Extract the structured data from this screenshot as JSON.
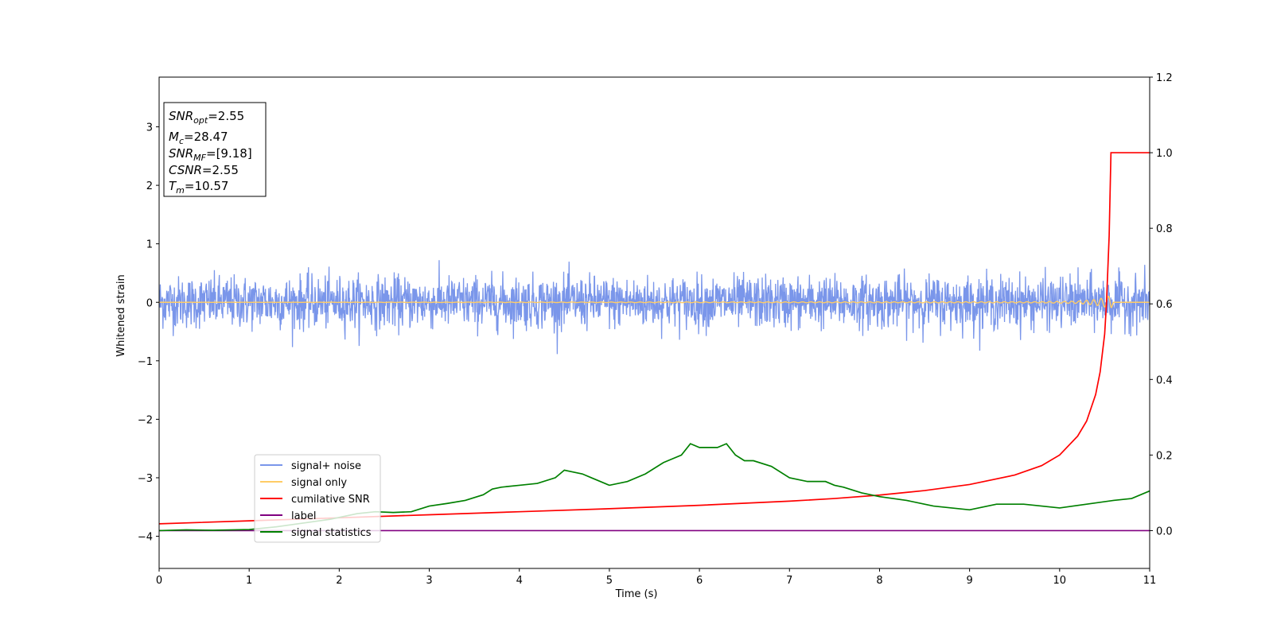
{
  "chart_data": {
    "type": "line",
    "xlabel": "Time (s)",
    "ylabel": "Whitened strain",
    "xlim": [
      0,
      11
    ],
    "ylim": [
      -4.55,
      3.85
    ],
    "y2lim": [
      -0.1,
      1.2
    ],
    "xticks": [
      "0",
      "1",
      "2",
      "3",
      "4",
      "5",
      "6",
      "7",
      "8",
      "9",
      "10",
      "11"
    ],
    "yticks": [
      "3",
      "2",
      "1",
      "0",
      "−1",
      "−2",
      "−3",
      "−4"
    ],
    "y2ticks": [
      "1.2",
      "1.0",
      "0.8",
      "0.6",
      "0.4",
      "0.2",
      "0.0"
    ],
    "annotation": {
      "snr_opt": {
        "base": "SNR",
        "sub": "opt",
        "value": "=2.55"
      },
      "mc": {
        "base": "M",
        "sub": "c",
        "value": "=28.47"
      },
      "snr_mf": {
        "base": "SNR",
        "sub": "MF",
        "value": "=[9.18]"
      },
      "csnr": {
        "base": "CSNR",
        "sub": "",
        "value": "=2.55"
      },
      "tm": {
        "base": "T",
        "sub": "m",
        "value": "=10.57"
      }
    },
    "legend": {
      "placement": "lower-left",
      "entries": [
        {
          "label": "signal+ noise",
          "color": "#7a96ea"
        },
        {
          "label": "signal only",
          "color": "#ffcc66"
        },
        {
          "label": "cumilative SNR",
          "color": "#ff0000"
        },
        {
          "label": "label",
          "color": "#800080"
        },
        {
          "label": "signal statistics",
          "color": "#008000"
        }
      ]
    },
    "series": [
      {
        "name": "signal+ noise",
        "axis": "left",
        "color": "#7a96ea",
        "kind": "noise",
        "noise_sigma": 0.22,
        "noise_peak": 1.03
      },
      {
        "name": "signal only",
        "axis": "left",
        "color": "#ffcc66",
        "kind": "chirp",
        "x": [
          0,
          9.8,
          10.2,
          10.4,
          10.5,
          10.57,
          10.6,
          11
        ],
        "amplitude": [
          0,
          0.01,
          0.02,
          0.05,
          0.08,
          0.12,
          0,
          0
        ]
      },
      {
        "name": "cumilative SNR",
        "axis": "right",
        "color": "#ff0000",
        "x": [
          0,
          1,
          2,
          3,
          4,
          5,
          6,
          7,
          7.5,
          8,
          8.5,
          9,
          9.5,
          9.8,
          10,
          10.2,
          10.3,
          10.4,
          10.45,
          10.5,
          10.52,
          10.55,
          10.57,
          10.6,
          11
        ],
        "y": [
          0.018,
          0.026,
          0.034,
          0.042,
          0.05,
          0.058,
          0.067,
          0.078,
          0.085,
          0.094,
          0.106,
          0.122,
          0.147,
          0.172,
          0.2,
          0.25,
          0.29,
          0.36,
          0.42,
          0.52,
          0.6,
          0.78,
          1.0,
          1.0,
          1.0
        ]
      },
      {
        "name": "label",
        "axis": "right",
        "color": "#800080",
        "x": [
          0,
          11
        ],
        "y": [
          0,
          0
        ]
      },
      {
        "name": "signal statistics",
        "axis": "right",
        "color": "#008000",
        "x": [
          0,
          0.3,
          0.6,
          1,
          1.3,
          1.6,
          1.9,
          2.2,
          2.4,
          2.6,
          2.8,
          3,
          3.2,
          3.4,
          3.6,
          3.7,
          3.8,
          4,
          4.2,
          4.4,
          4.5,
          4.6,
          4.7,
          4.8,
          5,
          5.2,
          5.4,
          5.6,
          5.7,
          5.8,
          5.9,
          6,
          6.2,
          6.3,
          6.4,
          6.5,
          6.6,
          6.8,
          7,
          7.2,
          7.4,
          7.5,
          7.6,
          7.8,
          8,
          8.3,
          8.6,
          9,
          9.3,
          9.6,
          10,
          10.3,
          10.6,
          10.8,
          11
        ],
        "y": [
          0,
          0.002,
          0.001,
          0.003,
          0.01,
          0.02,
          0.03,
          0.045,
          0.05,
          0.048,
          0.05,
          0.065,
          0.072,
          0.08,
          0.095,
          0.11,
          0.115,
          0.12,
          0.125,
          0.14,
          0.16,
          0.155,
          0.15,
          0.14,
          0.12,
          0.13,
          0.15,
          0.18,
          0.19,
          0.2,
          0.23,
          0.22,
          0.22,
          0.23,
          0.2,
          0.185,
          0.185,
          0.17,
          0.14,
          0.13,
          0.13,
          0.12,
          0.115,
          0.1,
          0.09,
          0.08,
          0.065,
          0.055,
          0.07,
          0.07,
          0.06,
          0.07,
          0.08,
          0.085,
          0.105
        ]
      }
    ]
  }
}
